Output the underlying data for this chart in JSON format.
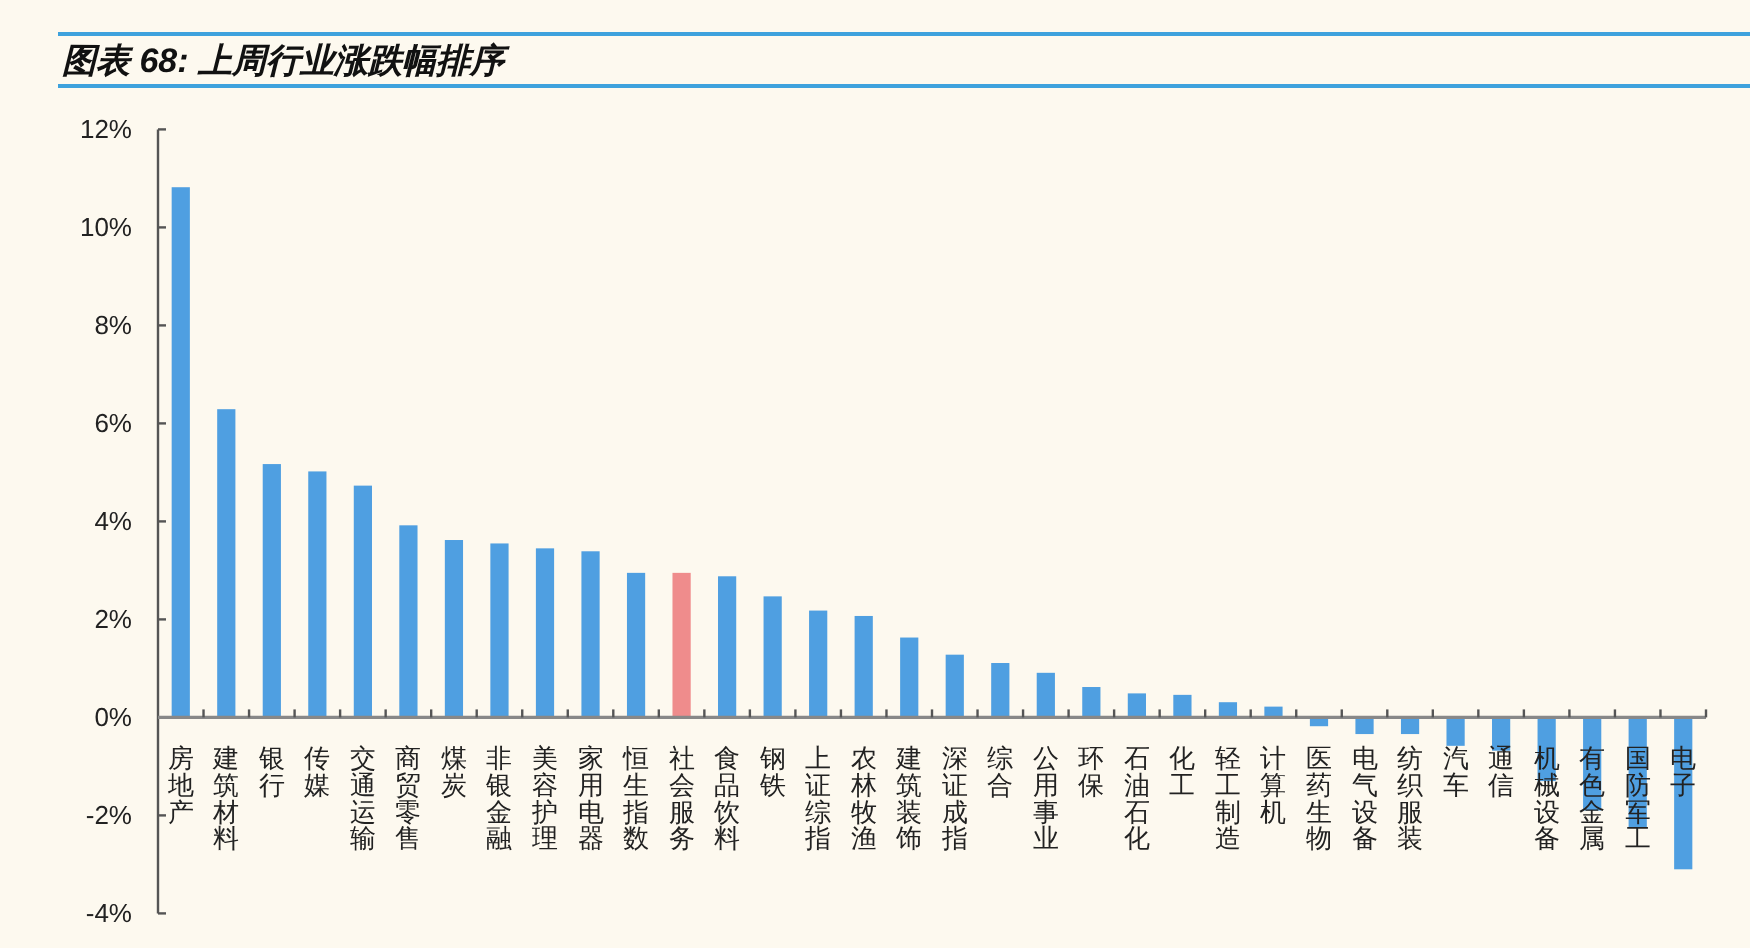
{
  "chart_data": {
    "type": "bar",
    "title": "图表 68: 上周行业涨跌幅排序",
    "categories": [
      "房地产",
      "建筑材料",
      "银行",
      "传媒",
      "交通运输",
      "商贸零售",
      "煤炭",
      "非银金融",
      "美容护理",
      "家用电器",
      "恒生指数",
      "社会服务",
      "食品饮料",
      "钢铁",
      "上证综指",
      "农林牧渔",
      "建筑装饰",
      "深证成指",
      "综合",
      "公用事业",
      "环保",
      "石油石化",
      "化工",
      "轻工制造",
      "计算机",
      "医药生物",
      "电气设备",
      "纺织服装",
      "汽车",
      "通信",
      "机械设备",
      "有色金属",
      "国防军工",
      "电子"
    ],
    "values": [
      10.82,
      6.29,
      5.17,
      5.02,
      4.73,
      3.92,
      3.62,
      3.55,
      3.45,
      3.39,
      2.95,
      2.95,
      2.88,
      2.47,
      2.18,
      2.07,
      1.63,
      1.28,
      1.11,
      0.91,
      0.62,
      0.49,
      0.46,
      0.31,
      0.22,
      -0.18,
      -0.34,
      -0.34,
      -0.58,
      -0.68,
      -1.3,
      -1.9,
      -2.25,
      -3.1
    ],
    "colors": [
      "#4f9fe1",
      "#4f9fe1",
      "#4f9fe1",
      "#4f9fe1",
      "#4f9fe1",
      "#4f9fe1",
      "#4f9fe1",
      "#4f9fe1",
      "#4f9fe1",
      "#4f9fe1",
      "#4f9fe1",
      "#ef8c8c",
      "#4f9fe1",
      "#4f9fe1",
      "#4f9fe1",
      "#4f9fe1",
      "#4f9fe1",
      "#4f9fe1",
      "#4f9fe1",
      "#4f9fe1",
      "#4f9fe1",
      "#4f9fe1",
      "#4f9fe1",
      "#4f9fe1",
      "#4f9fe1",
      "#4f9fe1",
      "#4f9fe1",
      "#4f9fe1",
      "#4f9fe1",
      "#4f9fe1",
      "#4f9fe1",
      "#4f9fe1",
      "#4f9fe1",
      "#4f9fe1"
    ],
    "ylim": [
      -4,
      12
    ],
    "yticks": [
      {
        "value": -4,
        "label": "-4%"
      },
      {
        "value": -2,
        "label": "-2%"
      },
      {
        "value": 0,
        "label": "0%"
      },
      {
        "value": 2,
        "label": "2%"
      },
      {
        "value": 4,
        "label": "4%"
      },
      {
        "value": 6,
        "label": "6%"
      },
      {
        "value": 8,
        "label": "8%"
      },
      {
        "value": 10,
        "label": "10%"
      },
      {
        "value": 12,
        "label": "12%"
      }
    ]
  }
}
